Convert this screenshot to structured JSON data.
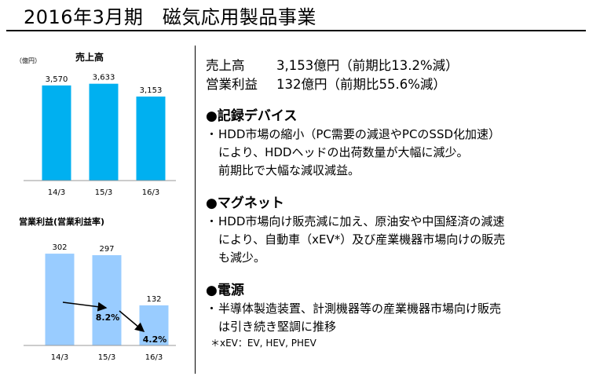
{
  "header": {
    "title": "2016年3月期　磁気応用製品事業"
  },
  "summary": [
    {
      "label": "売上高",
      "value": "3,153億円（前期比13.2%減）"
    },
    {
      "label": "営業利益",
      "value": "132億円（前期比55.6%減）"
    }
  ],
  "sections": [
    {
      "heading": "●記録デバイス",
      "bullet": "・",
      "lines": [
        "HDD市場の縮小（PC需要の減退やPCのSSD化加速）",
        "により、HDDヘッドの出荷数量が大幅に減少。",
        "前期比で大幅な減収減益。"
      ]
    },
    {
      "heading": "●マグネット",
      "bullet": "・",
      "lines": [
        "HDD市場向け販売減に加え、原油安や中国経済の減速",
        "により、自動車（xEV*）及び産業機器市場向けの販売",
        "も減少。"
      ]
    },
    {
      "heading": "●電源",
      "bullet": "・",
      "lines": [
        "半導体製造装置、計測機器等の産業機器市場向け販売",
        "は引き続き堅調に推移"
      ]
    }
  ],
  "footnote": "＊xEV：EV,  HEV,  PHEV",
  "colors": {
    "sales_bar": "#00b0f0",
    "profit_bar": "#99ccff",
    "text": "#000000"
  },
  "chart_data": [
    {
      "type": "bar",
      "title": "売上高",
      "unit": "（億円）",
      "categories": [
        "14/3",
        "15/3",
        "16/3"
      ],
      "values": [
        3570,
        3633,
        3153
      ],
      "value_labels": [
        "3,570",
        "3,633",
        "3,153"
      ],
      "ylim": [
        0,
        3800
      ]
    },
    {
      "type": "bar",
      "title": "営業利益(営業利益率)",
      "categories": [
        "14/3",
        "15/3",
        "16/3"
      ],
      "values": [
        302,
        297,
        132
      ],
      "value_labels": [
        "302",
        "297",
        "132"
      ],
      "ylim": [
        0,
        310
      ],
      "margin_annotations": [
        {
          "category": "15/3",
          "label": "8.2%"
        },
        {
          "category": "16/3",
          "label": "4.2%"
        }
      ]
    }
  ]
}
